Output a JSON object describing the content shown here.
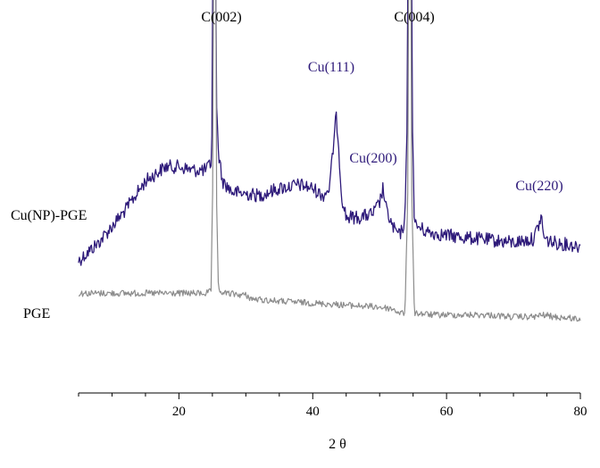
{
  "chart_data": {
    "type": "line",
    "xlabel": "2 θ",
    "ylabel": "",
    "xlim": [
      5,
      80
    ],
    "ylim": [
      0,
      100
    ],
    "x_ticks": [
      20,
      40,
      60,
      80
    ],
    "grid": false,
    "colors": {
      "cu_np_pge": "#2e1a7a",
      "pge": "#8c8c8c",
      "peak_label": "#2e1a7a",
      "axis": "#000000"
    },
    "series": [
      {
        "name": "Cu(NP)-PGE",
        "color": "#2e1a7a",
        "points": [
          [
            5,
            52
          ],
          [
            8,
            57
          ],
          [
            12,
            66
          ],
          [
            15,
            74
          ],
          [
            18,
            78
          ],
          [
            20,
            78
          ],
          [
            22,
            77
          ],
          [
            24,
            77
          ],
          [
            24.8,
            79
          ],
          [
            25.1,
            100
          ],
          [
            25.5,
            100
          ],
          [
            25.9,
            82
          ],
          [
            26.5,
            74
          ],
          [
            28,
            71
          ],
          [
            32,
            70
          ],
          [
            35,
            72
          ],
          [
            38,
            73
          ],
          [
            40,
            72
          ],
          [
            41.5,
            70
          ],
          [
            42.5,
            72
          ],
          [
            43.2,
            86
          ],
          [
            43.5,
            92
          ],
          [
            43.8,
            86
          ],
          [
            44.3,
            70
          ],
          [
            45,
            64
          ],
          [
            47,
            64
          ],
          [
            49,
            65
          ],
          [
            50,
            68
          ],
          [
            50.5,
            72
          ],
          [
            51,
            66
          ],
          [
            52,
            61
          ],
          [
            53,
            59
          ],
          [
            53.8,
            63
          ],
          [
            54.2,
            100
          ],
          [
            54.8,
            100
          ],
          [
            55.2,
            62
          ],
          [
            57,
            60
          ],
          [
            60,
            59
          ],
          [
            65,
            58
          ],
          [
            70,
            57
          ],
          [
            73,
            58
          ],
          [
            74.2,
            64
          ],
          [
            74.6,
            58
          ],
          [
            76,
            57
          ],
          [
            80,
            56
          ]
        ]
      },
      {
        "name": "PGE",
        "color": "#8c8c8c",
        "points": [
          [
            5,
            34
          ],
          [
            10,
            34
          ],
          [
            15,
            34
          ],
          [
            20,
            34
          ],
          [
            24,
            34
          ],
          [
            24.8,
            35
          ],
          [
            25.1,
            100
          ],
          [
            25.5,
            100
          ],
          [
            25.9,
            35
          ],
          [
            27,
            34
          ],
          [
            30,
            33
          ],
          [
            31,
            31
          ],
          [
            35,
            30
          ],
          [
            40,
            29
          ],
          [
            45,
            28
          ],
          [
            50,
            27
          ],
          [
            52,
            26
          ],
          [
            53,
            24
          ],
          [
            53.8,
            24
          ],
          [
            54.3,
            100
          ],
          [
            54.7,
            100
          ],
          [
            55.2,
            24
          ],
          [
            58,
            23
          ],
          [
            62,
            23
          ],
          [
            66,
            23
          ],
          [
            70,
            22
          ],
          [
            73,
            22
          ],
          [
            74.5,
            23
          ],
          [
            76,
            22
          ],
          [
            80,
            21
          ]
        ]
      }
    ],
    "annotations": [
      {
        "text": "C(002)",
        "x": 25.3,
        "y": 100,
        "kind": "carbon"
      },
      {
        "text": "C(004)",
        "x": 54.5,
        "y": 100,
        "kind": "carbon"
      },
      {
        "text": "Cu(111)",
        "x": 43.5,
        "y": 92,
        "kind": "copper"
      },
      {
        "text": "Cu(200)",
        "x": 50.5,
        "y": 72,
        "kind": "copper"
      },
      {
        "text": "Cu(220)",
        "x": 74.3,
        "y": 64,
        "kind": "copper"
      }
    ],
    "series_labels": [
      {
        "text": "Cu(NP)-PGE",
        "series": "Cu(NP)-PGE"
      },
      {
        "text": "PGE",
        "series": "PGE"
      }
    ]
  }
}
